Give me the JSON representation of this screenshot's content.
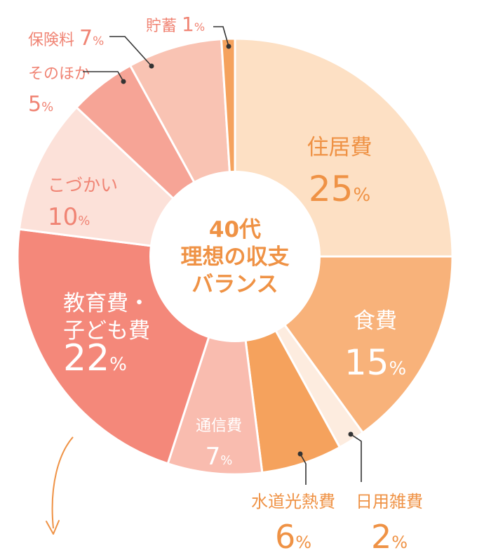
{
  "chart_data": {
    "type": "pie",
    "donut": true,
    "center_title": [
      "40代",
      "理想の収支",
      "バランス"
    ],
    "unit": "%",
    "slices": [
      {
        "name": "住居費",
        "label_lines": [
          "住居費"
        ],
        "value": 25,
        "color": "#fde0c4",
        "label_color": "#ef9245",
        "label_pos": "inside"
      },
      {
        "name": "食費",
        "label_lines": [
          "食費"
        ],
        "value": 15,
        "color": "#f8b27a",
        "label_color": "#ffffff",
        "label_pos": "inside"
      },
      {
        "name": "日用雑費",
        "label_lines": [
          "日用雑費"
        ],
        "value": 2,
        "color": "#fdecdf",
        "label_color": "#ef9245",
        "label_pos": "outside"
      },
      {
        "name": "水道光熱費",
        "label_lines": [
          "水道光熱費"
        ],
        "value": 6,
        "color": "#f5a25d",
        "label_color": "#ef9245",
        "label_pos": "outside"
      },
      {
        "name": "通信費",
        "label_lines": [
          "通信費"
        ],
        "value": 7,
        "color": "#f9bcaf",
        "label_color": "#ffffff",
        "label_pos": "inside"
      },
      {
        "name": "教育費・子ども費",
        "label_lines": [
          "教育費・",
          "子ども費"
        ],
        "value": 22,
        "color": "#f4887a",
        "label_color": "#ffffff",
        "label_pos": "inside"
      },
      {
        "name": "こづかい",
        "label_lines": [
          "こづかい"
        ],
        "value": 10,
        "color": "#fce1d9",
        "label_color": "#f08474",
        "label_pos": "inside"
      },
      {
        "name": "そのほか",
        "label_lines": [
          "そのほか"
        ],
        "value": 5,
        "color": "#f6a496",
        "label_color": "#f08474",
        "label_pos": "outside"
      },
      {
        "name": "保険料",
        "label_lines": [
          "保険料"
        ],
        "value": 7,
        "color": "#f9c3b3",
        "label_color": "#f08474",
        "label_pos": "outside"
      },
      {
        "name": "貯蓄",
        "label_lines": [
          "貯蓄"
        ],
        "value": 1,
        "color": "#f5a25d",
        "label_color": "#f08474",
        "label_pos": "outside"
      }
    ]
  },
  "colors": {
    "center_text": "#ef9245",
    "callout_line": "#333333",
    "arrow": "#ef9245"
  }
}
